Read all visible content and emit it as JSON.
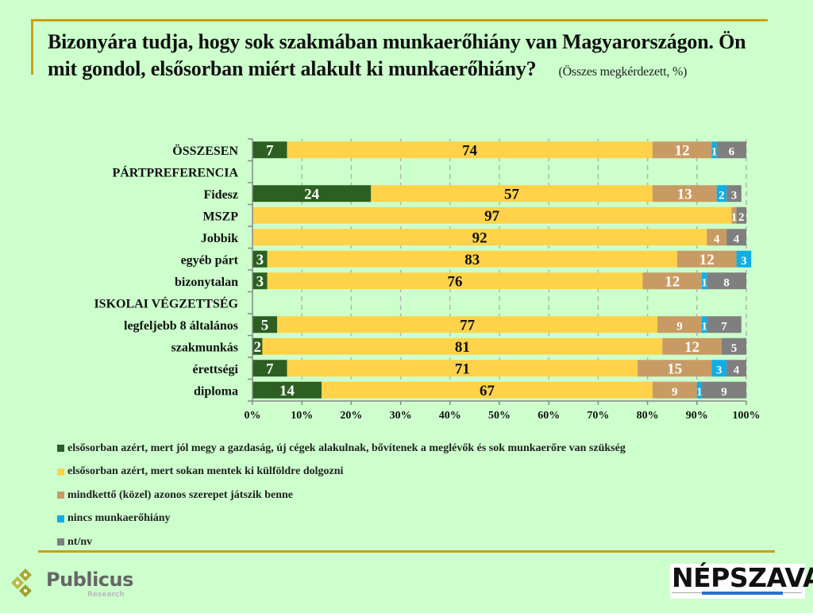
{
  "header": {
    "title": "Bizonyára tudja, hogy sok szakmában munkaerőhiány van Magyarországon. Ön mit gondol, elsősorban miért alakult ki munkaerőhiány?",
    "subtitle": "(Összes megkérdezett, %)"
  },
  "chart_data": {
    "type": "bar",
    "orientation": "horizontal",
    "stacked": true,
    "title": "Bizonyára tudja, hogy sok szakmában munkaerőhiány van Magyarországon. Ön mit gondol, elsősorban miért alakult ki munkaerőhiány?",
    "subtitle": "(Összes megkérdezett, %)",
    "xlabel": "",
    "ylabel": "",
    "xlim": [
      0,
      100
    ],
    "x_ticks": [
      "0%",
      "10%",
      "20%",
      "30%",
      "40%",
      "50%",
      "60%",
      "70%",
      "80%",
      "90%",
      "100%"
    ],
    "grid": "vertical dashed",
    "legend_position": "bottom",
    "categories": [
      {
        "label": "ÖSSZESEN",
        "bold": true
      },
      {
        "label": "PÁRTPREFERENCIA",
        "bold": true,
        "header": true
      },
      {
        "label": "Fidesz"
      },
      {
        "label": "MSZP"
      },
      {
        "label": "Jobbik"
      },
      {
        "label": "egyéb párt"
      },
      {
        "label": "bizonytalan"
      },
      {
        "label": "ISKOLAI VÉGZETTSÉG",
        "bold": true,
        "header": true
      },
      {
        "label": "legfeljebb 8 általános"
      },
      {
        "label": "szakmunkás"
      },
      {
        "label": "érettségi"
      },
      {
        "label": "diploma"
      }
    ],
    "series": [
      {
        "name": "elsősorban azért, mert jól megy a gazdaság, új cégek alakulnak, bővítenek a meglévők és sok munkaerőre van szükség",
        "color": "#2c5f21",
        "label_color": "#ffffff",
        "values": [
          7,
          null,
          24,
          0,
          0,
          3,
          3,
          null,
          5,
          2,
          7,
          14
        ]
      },
      {
        "name": "elsősorban azért, mert sokan mentek ki külföldre dolgozni",
        "color": "#ffd24a",
        "label_color": "#111111",
        "values": [
          74,
          null,
          57,
          97,
          92,
          83,
          76,
          null,
          77,
          81,
          71,
          67
        ]
      },
      {
        "name": "mindkettő (közel) azonos szerepet játszik benne",
        "color": "#c89b64",
        "label_color": "#ffffff",
        "values": [
          12,
          null,
          13,
          1,
          4,
          12,
          12,
          null,
          9,
          12,
          15,
          9
        ]
      },
      {
        "name": "nincs munkaerőhiány",
        "color": "#10aee8",
        "label_color": "#ffffff",
        "values": [
          1,
          null,
          2,
          0,
          0,
          3,
          1,
          null,
          1,
          0,
          3,
          1
        ]
      },
      {
        "name": "nt/nv",
        "color": "#7f7f7f",
        "label_color": "#ffffff",
        "values": [
          6,
          null,
          3,
          2,
          4,
          0,
          8,
          null,
          7,
          5,
          4,
          9
        ]
      }
    ]
  },
  "legend": {
    "items": [
      {
        "label": "elsősorban azért, mert jól megy a gazdaság, új cégek alakulnak, bővítenek a meglévők és sok munkaerőre van szükség",
        "color": "#2c5f21"
      },
      {
        "label": "elsősorban azért, mert sokan mentek ki külföldre dolgozni",
        "color": "#ffd24a"
      },
      {
        "label": "mindkettő (közel) azonos szerepet játszik benne",
        "color": "#c89b64"
      },
      {
        "label": "nincs munkaerőhiány",
        "color": "#10aee8"
      },
      {
        "label": "nt/nv",
        "color": "#7f7f7f"
      }
    ]
  },
  "footer": {
    "left_logo": {
      "name": "Publicus",
      "sub": "Research"
    },
    "right_logo": {
      "name": "NÉPSZAVA"
    }
  }
}
